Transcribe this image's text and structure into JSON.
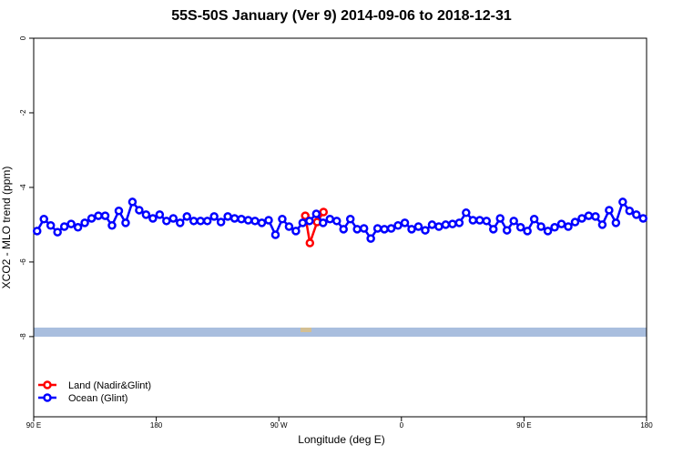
{
  "chart_data": {
    "type": "line",
    "title": "55S-50S January (Ver 9)   2014-09-06 to 2018-12-31",
    "x_label": "Longitude (deg E)",
    "y_label": "XCO2 - MLO trend (ppm)",
    "xlim": [
      90,
      540
    ],
    "ylim": [
      -10.15,
      0
    ],
    "xticks": [
      {
        "value": 90,
        "label": "90 E"
      },
      {
        "value": 180,
        "label": "180"
      },
      {
        "value": 270,
        "label": "90 W"
      },
      {
        "value": 360,
        "label": "0"
      },
      {
        "value": 450,
        "label": "90 E"
      },
      {
        "value": 540,
        "label": "180"
      }
    ],
    "yticks": [
      0,
      -2,
      -4,
      -6,
      -8
    ],
    "legend": "bottom-left",
    "series": [
      {
        "name": "Land (Nadir&Glint)",
        "color": "#ff0000",
        "x": [
          289.4,
          292.8,
          298.1,
          302.8
        ],
        "values": [
          -4.76,
          -5.49,
          -4.93,
          -4.66
        ]
      },
      {
        "name": "Ocean (Glint)",
        "color": "#0000ff",
        "x": [
          92.5,
          97.5,
          102.5,
          107.5,
          112.5,
          117.5,
          122.5,
          127.5,
          132.5,
          137.5,
          142.5,
          147.5,
          152.5,
          157.5,
          162.5,
          167.5,
          172.5,
          177.5,
          182.5,
          187.5,
          192.5,
          197.5,
          202.5,
          207.5,
          212.5,
          217.5,
          222.5,
          227.5,
          232.5,
          237.5,
          242.5,
          247.5,
          252.5,
          257.5,
          262.5,
          267.5,
          272.5,
          277.5,
          282.5,
          287.5,
          292.5,
          297.5,
          302.5,
          307.5,
          312.5,
          317.5,
          322.5,
          327.5,
          332.5,
          337.5,
          342.5,
          347.5,
          352.5,
          357.5,
          362.5,
          367.5,
          372.5,
          377.5,
          382.5,
          387.5,
          392.5,
          397.5,
          402.5,
          407.5,
          412.5,
          417.5,
          422.5,
          427.5,
          432.5,
          437.5,
          442.5,
          447.5,
          452.5,
          457.5,
          462.5,
          467.5,
          472.5,
          477.5,
          482.5,
          487.5,
          492.5,
          497.5,
          502.5,
          507.5,
          512.5,
          517.5,
          522.5,
          527.5,
          532.5,
          537.5
        ],
        "values": [
          -5.17,
          -4.85,
          -5.02,
          -5.2,
          -5.05,
          -4.98,
          -5.07,
          -4.95,
          -4.83,
          -4.76,
          -4.76,
          -5.02,
          -4.63,
          -4.95,
          -4.39,
          -4.61,
          -4.73,
          -4.83,
          -4.73,
          -4.9,
          -4.83,
          -4.95,
          -4.78,
          -4.9,
          -4.9,
          -4.9,
          -4.78,
          -4.93,
          -4.78,
          -4.83,
          -4.85,
          -4.88,
          -4.9,
          -4.95,
          -4.88,
          -5.27,
          -4.85,
          -5.05,
          -5.17,
          -4.95,
          -4.9,
          -4.71,
          -4.95,
          -4.85,
          -4.9,
          -5.12,
          -4.85,
          -5.12,
          -5.1,
          -5.37,
          -5.1,
          -5.12,
          -5.1,
          -5.02,
          -4.95,
          -5.12,
          -5.05,
          -5.15,
          -5.0,
          -5.05,
          -5.0,
          -4.98,
          -4.95,
          -4.68,
          -4.88,
          -4.88,
          -4.9,
          -5.12,
          -4.83,
          -5.15,
          -4.9,
          -5.07,
          -5.17,
          -4.85,
          -5.05,
          -5.17,
          -5.07,
          -4.98,
          -5.05,
          -4.93,
          -4.83,
          -4.76,
          -4.78,
          -5.0,
          -4.61,
          -4.95,
          -4.39,
          -4.63,
          -4.73,
          -4.83
        ]
      }
    ]
  }
}
